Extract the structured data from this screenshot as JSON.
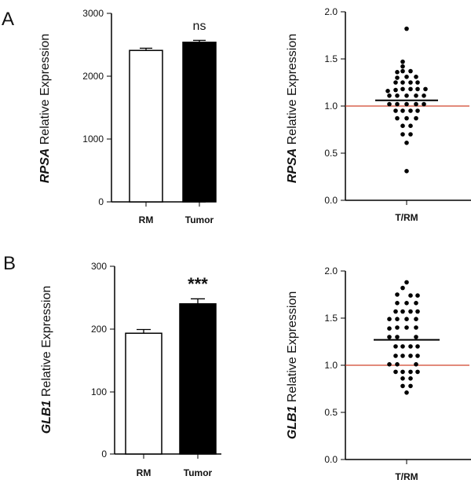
{
  "panels": [
    {
      "letter": "A",
      "gene": "RPSA",
      "ylabel_suffix": " Relative Expression",
      "bar": {
        "yticks": [
          "0",
          "1000",
          "2000",
          "3000"
        ],
        "categories": [
          "RM",
          "Tumor"
        ],
        "significance": "ns"
      },
      "scatter": {
        "yticks": [
          "0.0",
          "0.5",
          "1.0",
          "1.5",
          "2.0"
        ],
        "xlabel": "T/RM"
      }
    },
    {
      "letter": "B",
      "gene": "GLB1",
      "ylabel_suffix": " Relative Expression",
      "bar": {
        "yticks": [
          "0",
          "100",
          "200",
          "300"
        ],
        "categories": [
          "RM",
          "Tumor"
        ],
        "significance": "***"
      },
      "scatter": {
        "yticks": [
          "0.0",
          "0.5",
          "1.0",
          "1.5",
          "2.0"
        ],
        "xlabel": "T/RM"
      }
    }
  ],
  "colors": {
    "rm_bar": "#ffffff",
    "tumor_bar": "#000000",
    "reference_line": "#d0442c",
    "points": "#000000"
  },
  "chart_data": [
    {
      "type": "bar",
      "categories": [
        "RM",
        "Tumor"
      ],
      "values": [
        2410,
        2540
      ],
      "errors": [
        35,
        30
      ],
      "ylabel": "RPSA Relative Expression",
      "ylim": [
        0,
        3000
      ],
      "annotation": "ns",
      "grid": false
    },
    {
      "type": "scatter",
      "xlabel": "T/RM",
      "ylabel": "RPSA Relative Expression",
      "ylim": [
        0,
        2
      ],
      "mean": 1.06,
      "reference_line": 1.0,
      "grid": false,
      "points": [
        {
          "x": 0,
          "y": 1.82
        },
        {
          "x": -0.05,
          "y": 1.47
        },
        {
          "x": -0.05,
          "y": 1.42
        },
        {
          "x": -0.12,
          "y": 1.36
        },
        {
          "x": -0.05,
          "y": 1.37
        },
        {
          "x": 0.05,
          "y": 1.37
        },
        {
          "x": -0.12,
          "y": 1.3
        },
        {
          "x": 0,
          "y": 1.31
        },
        {
          "x": 0.12,
          "y": 1.31
        },
        {
          "x": -0.14,
          "y": 1.25
        },
        {
          "x": -0.05,
          "y": 1.25
        },
        {
          "x": 0.05,
          "y": 1.25
        },
        {
          "x": 0.14,
          "y": 1.25
        },
        {
          "x": -0.24,
          "y": 1.16
        },
        {
          "x": -0.14,
          "y": 1.17
        },
        {
          "x": -0.05,
          "y": 1.18
        },
        {
          "x": 0.05,
          "y": 1.18
        },
        {
          "x": 0.14,
          "y": 1.18
        },
        {
          "x": 0.24,
          "y": 1.18
        },
        {
          "x": -0.22,
          "y": 1.11
        },
        {
          "x": -0.12,
          "y": 1.11
        },
        {
          "x": 0,
          "y": 1.11
        },
        {
          "x": 0.12,
          "y": 1.11
        },
        {
          "x": 0.22,
          "y": 1.11
        },
        {
          "x": -0.22,
          "y": 1.02
        },
        {
          "x": -0.12,
          "y": 1.02
        },
        {
          "x": 0,
          "y": 1.02
        },
        {
          "x": 0.12,
          "y": 1.02
        },
        {
          "x": 0.22,
          "y": 1.02
        },
        {
          "x": -0.14,
          "y": 0.95
        },
        {
          "x": -0.05,
          "y": 0.95
        },
        {
          "x": 0.05,
          "y": 0.95
        },
        {
          "x": 0.14,
          "y": 0.95
        },
        {
          "x": -0.12,
          "y": 0.87
        },
        {
          "x": 0,
          "y": 0.87
        },
        {
          "x": 0.12,
          "y": 0.87
        },
        {
          "x": -0.05,
          "y": 0.79
        },
        {
          "x": 0.05,
          "y": 0.79
        },
        {
          "x": -0.05,
          "y": 0.7
        },
        {
          "x": 0.05,
          "y": 0.7
        },
        {
          "x": 0,
          "y": 0.61
        },
        {
          "x": 0,
          "y": 0.31
        }
      ]
    },
    {
      "type": "bar",
      "categories": [
        "RM",
        "Tumor"
      ],
      "values": [
        193,
        240
      ],
      "errors": [
        6,
        8
      ],
      "ylabel": "GLB1 Relative Expression",
      "ylim": [
        0,
        300
      ],
      "annotation": "***",
      "grid": false
    },
    {
      "type": "scatter",
      "xlabel": "T/RM",
      "ylabel": "GLB1 Relative Expression",
      "ylim": [
        0,
        2
      ],
      "mean": 1.27,
      "reference_line": 1.0,
      "grid": false,
      "points": [
        {
          "x": 0,
          "y": 1.88
        },
        {
          "x": -0.05,
          "y": 1.82
        },
        {
          "x": -0.12,
          "y": 1.75
        },
        {
          "x": 0.05,
          "y": 1.74
        },
        {
          "x": 0.14,
          "y": 1.74
        },
        {
          "x": -0.12,
          "y": 1.66
        },
        {
          "x": 0,
          "y": 1.66
        },
        {
          "x": 0.12,
          "y": 1.66
        },
        {
          "x": -0.14,
          "y": 1.57
        },
        {
          "x": -0.05,
          "y": 1.57
        },
        {
          "x": 0.05,
          "y": 1.57
        },
        {
          "x": 0.14,
          "y": 1.57
        },
        {
          "x": -0.22,
          "y": 1.49
        },
        {
          "x": -0.12,
          "y": 1.49
        },
        {
          "x": 0,
          "y": 1.49
        },
        {
          "x": 0.12,
          "y": 1.49
        },
        {
          "x": -0.22,
          "y": 1.39
        },
        {
          "x": -0.12,
          "y": 1.4
        },
        {
          "x": 0,
          "y": 1.4
        },
        {
          "x": 0.12,
          "y": 1.4
        },
        {
          "x": -0.22,
          "y": 1.3
        },
        {
          "x": -0.12,
          "y": 1.3
        },
        {
          "x": 0.12,
          "y": 1.3
        },
        {
          "x": -0.14,
          "y": 1.2
        },
        {
          "x": -0.05,
          "y": 1.2
        },
        {
          "x": 0.05,
          "y": 1.2
        },
        {
          "x": 0.14,
          "y": 1.2
        },
        {
          "x": -0.14,
          "y": 1.1
        },
        {
          "x": -0.05,
          "y": 1.1
        },
        {
          "x": 0.05,
          "y": 1.1
        },
        {
          "x": 0.14,
          "y": 1.1
        },
        {
          "x": -0.22,
          "y": 1.01
        },
        {
          "x": -0.12,
          "y": 1.01
        },
        {
          "x": 0.12,
          "y": 1.01
        },
        {
          "x": -0.14,
          "y": 0.93
        },
        {
          "x": -0.05,
          "y": 0.93
        },
        {
          "x": 0.05,
          "y": 0.93
        },
        {
          "x": 0.14,
          "y": 0.93
        },
        {
          "x": -0.05,
          "y": 0.86
        },
        {
          "x": 0.05,
          "y": 0.86
        },
        {
          "x": -0.05,
          "y": 0.78
        },
        {
          "x": 0.05,
          "y": 0.78
        },
        {
          "x": 0,
          "y": 0.71
        }
      ]
    }
  ]
}
